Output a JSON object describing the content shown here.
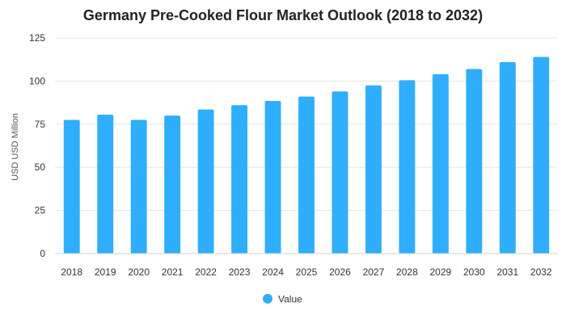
{
  "chart_data": {
    "type": "bar",
    "title": "Germany Pre-Cooked Flour Market Outlook (2018 to 2032)",
    "xlabel": "",
    "ylabel": "USD USD Million",
    "categories": [
      "2018",
      "2019",
      "2020",
      "2021",
      "2022",
      "2023",
      "2024",
      "2025",
      "2026",
      "2027",
      "2028",
      "2029",
      "2030",
      "2031",
      "2032"
    ],
    "series": [
      {
        "name": "Value",
        "values": [
          77.5,
          80.5,
          77.5,
          80.0,
          83.5,
          86.0,
          88.5,
          91.0,
          94.0,
          97.5,
          100.5,
          104.0,
          107.0,
          111.0,
          114.0
        ],
        "color": "#2eaefc"
      }
    ],
    "ylim": [
      0,
      125
    ],
    "yticks": [
      0,
      25,
      50,
      75,
      100,
      125
    ],
    "grid": true,
    "legend_position": "bottom"
  }
}
